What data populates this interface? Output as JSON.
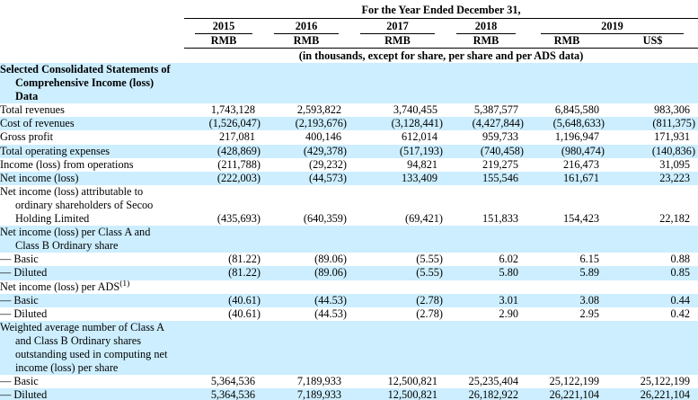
{
  "colors": {
    "highlight": "#cceeff",
    "text": "#000000",
    "rule": "#000000"
  },
  "table": {
    "title": "For the Year Ended December 31,",
    "note": "(in thousands, except for share, per share and per ADS data)",
    "years": [
      {
        "label": "2015"
      },
      {
        "label": "2016"
      },
      {
        "label": "2017"
      },
      {
        "label": "2018"
      },
      {
        "label": "2019"
      }
    ],
    "units": [
      "RMB",
      "RMB",
      "RMB",
      "RMB",
      "RMB",
      "US$"
    ],
    "rows": [
      {
        "label": "Selected Consolidated Statements of Comprehensive Income (loss) Data",
        "bold": true,
        "highlight": true,
        "values": [
          "",
          "",
          "",
          "",
          "",
          ""
        ]
      },
      {
        "label": "Total revenues",
        "bold": false,
        "highlight": false,
        "values": [
          "1,743,128",
          "2,593,822",
          "3,740,455",
          "5,387,577",
          "6,845,580",
          "983,306"
        ]
      },
      {
        "label": "Cost of revenues",
        "bold": false,
        "highlight": true,
        "values": [
          "(1,526,047)",
          "(2,193,676)",
          "(3,128,441)",
          "(4,427,844)",
          "(5,648,633)",
          "(811,375)"
        ]
      },
      {
        "label": "Gross profit",
        "bold": false,
        "highlight": false,
        "values": [
          "217,081",
          "400,146",
          "612,014",
          "959,733",
          "1,196,947",
          "171,931"
        ]
      },
      {
        "label": "Total operating expenses",
        "bold": false,
        "highlight": true,
        "values": [
          "(428,869)",
          "(429,378)",
          "(517,193)",
          "(740,458)",
          "(980,474)",
          "(140,836)"
        ]
      },
      {
        "label": "Income (loss) from operations",
        "bold": false,
        "highlight": false,
        "values": [
          "(211,788)",
          "(29,232)",
          "94,821",
          "219,275",
          "216,473",
          "31,095"
        ]
      },
      {
        "label": "Net income (loss)",
        "bold": false,
        "highlight": true,
        "values": [
          "(222,003)",
          "(44,573)",
          "133,409",
          "155,546",
          "161,671",
          "23,223"
        ]
      },
      {
        "label": "Net income (loss) attributable to ordinary shareholders of Secoo Holding Limited",
        "bold": false,
        "highlight": false,
        "values": [
          "(435,693)",
          "(640,359)",
          "(69,421)",
          "151,833",
          "154,423",
          "22,182"
        ]
      },
      {
        "label": "Net income (loss) per Class A and Class B Ordinary share",
        "bold": false,
        "highlight": true,
        "values": [
          "",
          "",
          "",
          "",
          "",
          ""
        ]
      },
      {
        "label": "— Basic",
        "bold": false,
        "highlight": false,
        "values": [
          "(81.22)",
          "(89.06)",
          "(5.55)",
          "6.02",
          "6.15",
          "0.88"
        ]
      },
      {
        "label": "— Diluted",
        "bold": false,
        "highlight": true,
        "values": [
          "(81.22)",
          "(89.06)",
          "(5.55)",
          "5.80",
          "5.89",
          "0.85"
        ]
      },
      {
        "label": "Net income (loss) per ADS",
        "sup": "(1)",
        "bold": false,
        "highlight": false,
        "values": [
          "",
          "",
          "",
          "",
          "",
          ""
        ]
      },
      {
        "label": "— Basic",
        "bold": false,
        "highlight": true,
        "values": [
          "(40.61)",
          "(44.53)",
          "(2.78)",
          "3.01",
          "3.08",
          "0.44"
        ]
      },
      {
        "label": "— Diluted",
        "bold": false,
        "highlight": false,
        "values": [
          "(40.61)",
          "(44.53)",
          "(2.78)",
          "2.90",
          "2.95",
          "0.42"
        ]
      },
      {
        "label": "Weighted average number of Class A and Class B Ordinary shares outstanding used in computing net income (loss) per share",
        "bold": false,
        "highlight": true,
        "values": [
          "",
          "",
          "",
          "",
          "",
          ""
        ]
      },
      {
        "label": "— Basic",
        "bold": false,
        "highlight": false,
        "values": [
          "5,364,536",
          "7,189,933",
          "12,500,821",
          "25,235,404",
          "25,122,199",
          "25,122,199"
        ]
      },
      {
        "label": "— Diluted",
        "bold": false,
        "highlight": true,
        "values": [
          "5,364,536",
          "7,189,933",
          "12,500,821",
          "26,182,922",
          "26,221,104",
          "26,221,104"
        ]
      }
    ]
  }
}
